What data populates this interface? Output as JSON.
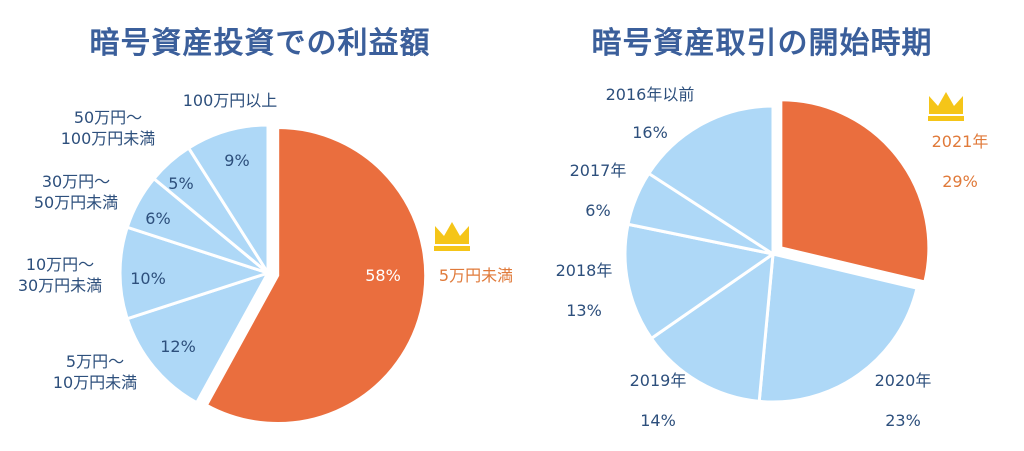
{
  "colors": {
    "title": "#3b5f9b",
    "highlight": "#ea6e3e",
    "slice": "#aed8f7",
    "label": "#2d4f7c",
    "crown": "#f5c518",
    "highlight_label": "#e07a3a"
  },
  "chart_data": [
    {
      "type": "pie",
      "title": "暗号資産投資での利益額",
      "slices": [
        {
          "label": "5万円未満",
          "value": 58,
          "value_label": "58%",
          "highlight": true
        },
        {
          "label": "5万円〜\n10万円未満",
          "value": 12,
          "value_label": "12%"
        },
        {
          "label": "10万円〜\n30万円未満",
          "value": 10,
          "value_label": "10%"
        },
        {
          "label": "30万円〜\n50万円未満",
          "value": 6,
          "value_label": "6%"
        },
        {
          "label": "50万円〜\n100万円未満",
          "value": 5,
          "value_label": "5%"
        },
        {
          "label": "100万円以上",
          "value": 9,
          "value_label": "9%"
        }
      ]
    },
    {
      "type": "pie",
      "title": "暗号資産取引の開始時期",
      "slices": [
        {
          "label": "2021年",
          "value": 29,
          "value_label": "29%",
          "highlight": true
        },
        {
          "label": "2020年",
          "value": 23,
          "value_label": "23%"
        },
        {
          "label": "2019年",
          "value": 14,
          "value_label": "14%"
        },
        {
          "label": "2018年",
          "value": 13,
          "value_label": "13%"
        },
        {
          "label": "2017年",
          "value": 6,
          "value_label": "6%"
        },
        {
          "label": "2016年以前",
          "value": 16,
          "value_label": "16%"
        }
      ]
    }
  ]
}
